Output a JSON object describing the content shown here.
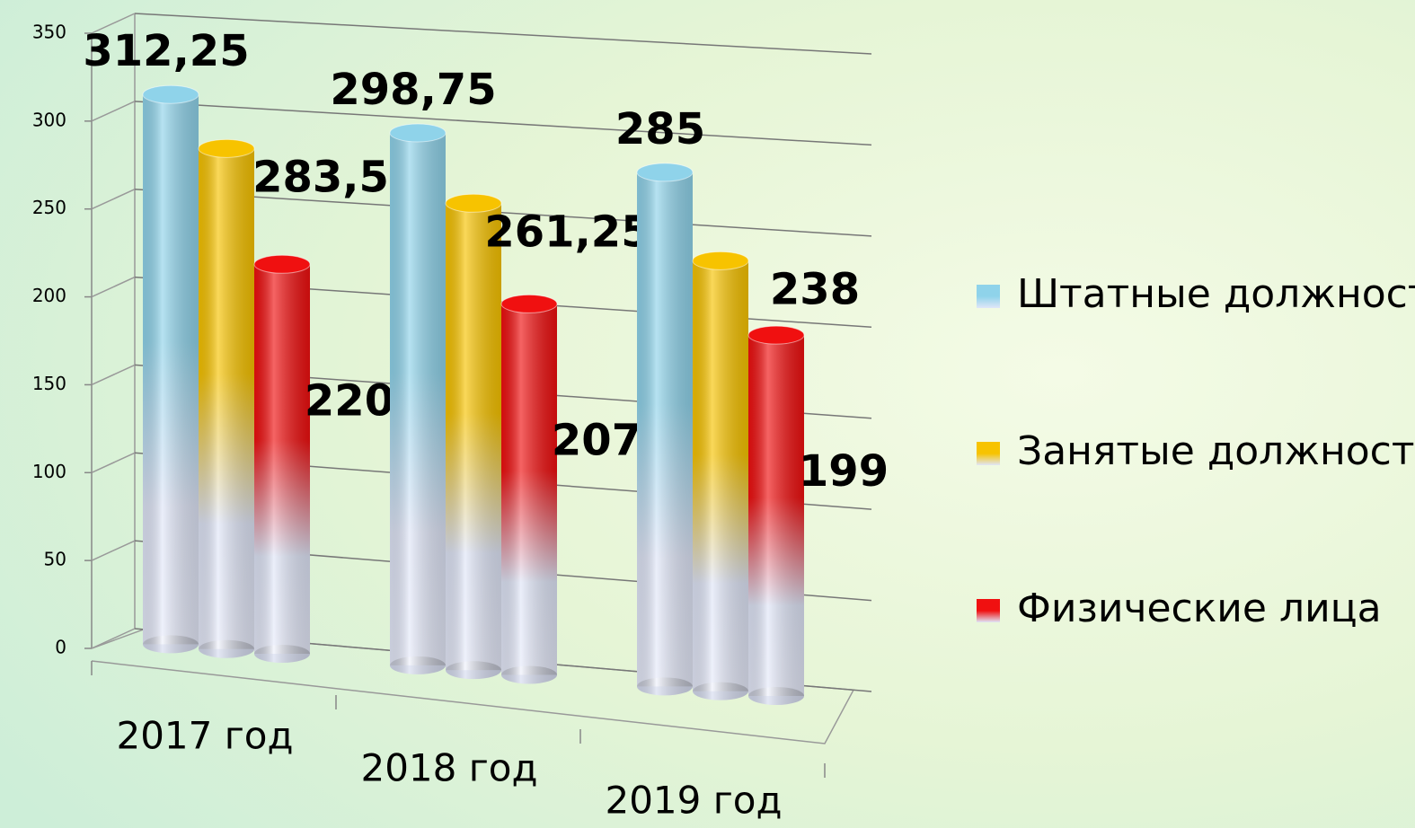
{
  "chart_data": {
    "type": "bar",
    "categories": [
      "2017 год",
      "2018 год",
      "2019 год"
    ],
    "series": [
      {
        "name": "Штатные должности",
        "color": "#8fd3ea",
        "values": [
          312.25,
          298.75,
          285
        ],
        "value_labels": [
          "312,25",
          "298,75",
          "285"
        ]
      },
      {
        "name": "Занятые должности",
        "color": "#f7c300",
        "values": [
          283.5,
          261.25,
          238
        ],
        "value_labels": [
          "283,5",
          "261,25",
          "238"
        ]
      },
      {
        "name": "Физические лица",
        "color": "#f01010",
        "values": [
          220,
          207,
          199
        ],
        "value_labels": [
          "220",
          "207",
          "199"
        ]
      }
    ],
    "ylim": [
      0,
      350
    ],
    "yticks": [
      0,
      50,
      100,
      150,
      200,
      250,
      300,
      350
    ],
    "grid": true,
    "legend": "right"
  }
}
